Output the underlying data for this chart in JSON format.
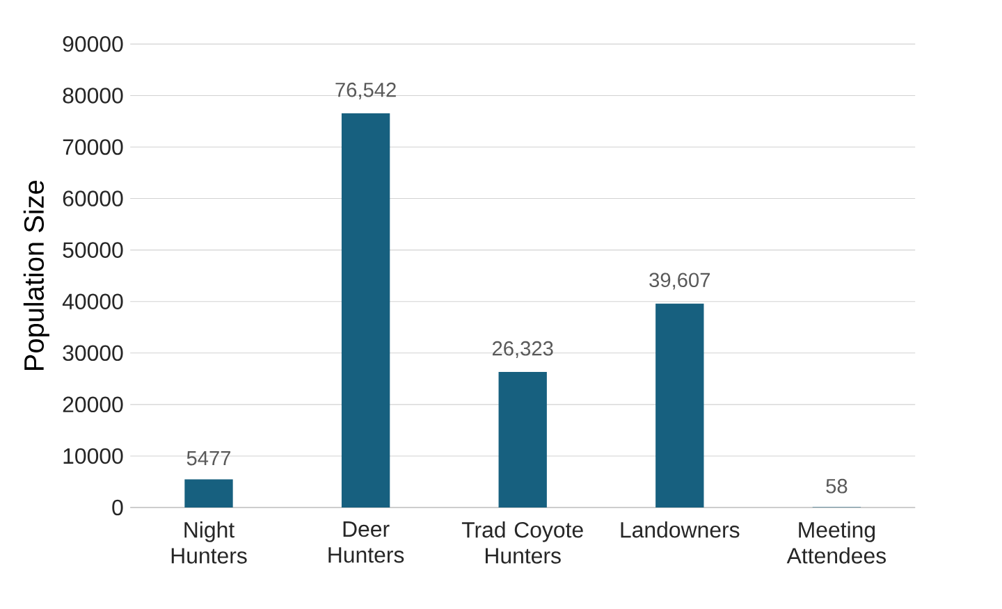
{
  "chart_data": {
    "type": "bar",
    "ylabel": "Population Size",
    "categories": [
      "Night Hunters",
      "Deer Hunters",
      "Trad Coyote Hunters",
      "Landowners",
      "Meeting Attendees"
    ],
    "values": [
      5477,
      76542,
      26323,
      39607,
      58
    ],
    "value_labels": [
      "5477",
      "76,542",
      "26,323",
      "39,607",
      "58"
    ],
    "color": "#17607f",
    "ylim": [
      0,
      90000
    ],
    "yticks": [
      0,
      10000,
      20000,
      30000,
      40000,
      50000,
      60000,
      70000,
      80000,
      90000
    ],
    "grid": "y"
  }
}
